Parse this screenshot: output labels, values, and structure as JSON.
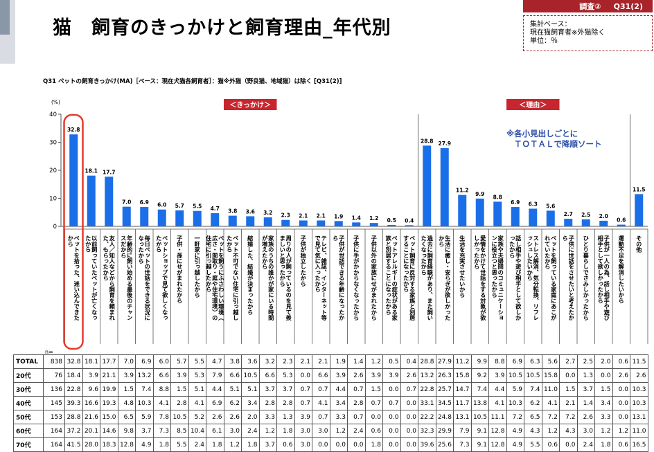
{
  "header": {
    "title": "猫　飼育のきっかけと飼育理由_年代別",
    "badge_survey": "調査②",
    "badge_question": "Q31(2)",
    "base_lines": [
      "集計ベース：",
      "現在猫飼育者※外猫除く",
      "単位：％"
    ]
  },
  "question_text": "Q31 ペットの飼育きっかけ(MA)［ベース：現在犬猫各飼育者］：猫※外猫（野良猫、地域猫）は除く [Q31(2)]",
  "annotation": [
    "※各小見出しごとに",
    "ＴＯＴＡＬで降順ソート"
  ],
  "colors": {
    "bar": "#1a6fe8",
    "accent": "#c8262e",
    "highlight": "#e53a2e"
  },
  "chart_data": {
    "type": "bar",
    "y_unit_label": "(%)",
    "ylim": [
      0,
      40
    ],
    "yticks": [
      0,
      10,
      20,
      30,
      40
    ],
    "n_label": "n=",
    "section_labels": [
      "＜きっかけ＞",
      "＜理由＞"
    ],
    "categories": [
      "ペットを拾った、迷い込んできたから",
      "以前飼っていたペットが亡くなったから",
      "友人／知人などから飼育を頼まれた、もらったから",
      "年齢的に飼い始める最後のチャンスだから",
      "毎日ペットの世話をできる状況になったから",
      "ペットショップで見て欲しくなったから",
      "子供・孫にせがまれたから",
      "一軒家に引っ越したから",
      "ペットを飼うにふさわしい環境（広さ・間取り・庭や住宅環境）の住宅に引っ越したから",
      "ペット不可でない住宅に引っ越したから",
      "結婚した、結婚が決まったから",
      "家族のうちの誰かが家にいる時間が増えたから",
      "周りの人が飼っているのを見て羨ましいと思ったから",
      "子供が独立したから",
      "テレビ、雑誌、インターネット等で見て気に入ったから",
      "子供が世話できる年齢になったから",
      "子供に手がかからなくなったから",
      "子供以外の家族にせがまれたから",
      "ペットアレルギーの症状がある家族と別居することになったから",
      "ペット飼育に反対する家族と別居することになったから",
      "過去に飼育経験があり、また飼いたくなったから",
      "生活に癒し・安らぎが欲しかったから",
      "生活を充実させたいから",
      "愛情をかけて世話をする対象が欲しかったから",
      "家族や夫婦間のコミュニケーションに役立つと思ったから",
      "話し相手や遊び相手として欲しかったから",
      "ストレス解消、気分転換、リフレッシュしたいから",
      "ペットを飼っている家庭にあこがれていたから",
      "子供に世話をさせたいと考えたから",
      "ひとり暮らしでさみしかったから",
      "子供が一人の為、話し相手や遊び相手として欲しかったから",
      "運動不足を解消したいから",
      "その他"
    ],
    "series": [
      {
        "name": "TOTAL",
        "n": 838,
        "values": [
          32.8,
          18.1,
          17.7,
          7.0,
          6.9,
          6.0,
          5.7,
          5.5,
          4.7,
          3.8,
          3.6,
          3.2,
          2.3,
          2.1,
          2.1,
          1.9,
          1.4,
          1.2,
          0.5,
          0.4,
          28.8,
          27.9,
          11.2,
          9.9,
          8.8,
          6.9,
          6.3,
          5.6,
          2.7,
          2.5,
          2.0,
          0.6,
          11.5
        ]
      },
      {
        "name": "20代",
        "n": 76,
        "values": [
          18.4,
          3.9,
          21.1,
          3.9,
          13.2,
          6.6,
          3.9,
          5.3,
          7.9,
          6.6,
          10.5,
          6.6,
          5.3,
          0.0,
          6.6,
          3.9,
          2.6,
          3.9,
          3.9,
          2.6,
          13.2,
          26.3,
          15.8,
          9.2,
          3.9,
          10.5,
          10.5,
          15.8,
          0.0,
          1.3,
          0.0,
          2.6,
          2.6
        ]
      },
      {
        "name": "30代",
        "n": 136,
        "values": [
          22.8,
          9.6,
          19.9,
          1.5,
          7.4,
          8.8,
          1.5,
          5.1,
          4.4,
          5.1,
          5.1,
          3.7,
          3.7,
          0.7,
          0.7,
          4.4,
          0.7,
          1.5,
          0.0,
          0.7,
          22.8,
          25.7,
          14.7,
          7.4,
          4.4,
          5.9,
          7.4,
          11.0,
          1.5,
          3.7,
          1.5,
          0.0,
          10.3
        ]
      },
      {
        "name": "40代",
        "n": 145,
        "values": [
          39.3,
          16.6,
          19.3,
          4.8,
          10.3,
          4.1,
          2.8,
          4.1,
          6.9,
          6.2,
          3.4,
          2.8,
          2.8,
          0.7,
          4.1,
          3.4,
          2.8,
          0.7,
          0.7,
          0.0,
          33.1,
          34.5,
          11.7,
          13.8,
          4.1,
          10.3,
          6.2,
          4.1,
          2.1,
          1.4,
          3.4,
          0.0,
          10.3
        ]
      },
      {
        "name": "50代",
        "n": 153,
        "values": [
          28.8,
          21.6,
          15.0,
          6.5,
          5.9,
          7.8,
          10.5,
          5.2,
          2.6,
          2.6,
          2.0,
          3.3,
          1.3,
          3.9,
          0.7,
          3.3,
          0.7,
          0.0,
          0.0,
          0.0,
          22.2,
          24.8,
          13.1,
          10.5,
          11.1,
          7.2,
          6.5,
          7.2,
          7.2,
          2.6,
          3.3,
          0.0,
          13.1
        ]
      },
      {
        "name": "60代",
        "n": 164,
        "values": [
          37.2,
          20.1,
          14.6,
          9.8,
          3.7,
          7.3,
          8.5,
          10.4,
          6.1,
          3.0,
          2.4,
          1.2,
          1.8,
          3.0,
          3.0,
          1.2,
          2.4,
          0.6,
          0.0,
          0.0,
          32.3,
          29.9,
          7.9,
          9.1,
          12.8,
          4.9,
          4.3,
          1.2,
          4.3,
          3.0,
          1.2,
          1.2,
          11.0
        ]
      },
      {
        "name": "70代",
        "n": 164,
        "values": [
          41.5,
          28.0,
          18.3,
          12.8,
          4.9,
          1.8,
          5.5,
          2.4,
          1.8,
          1.2,
          1.8,
          3.7,
          0.6,
          3.0,
          0.0,
          0.0,
          0.0,
          1.8,
          0.0,
          0.0,
          39.6,
          25.6,
          7.3,
          9.1,
          12.8,
          4.9,
          5.5,
          0.6,
          0.0,
          2.4,
          1.8,
          0.6,
          16.5
        ]
      }
    ]
  }
}
